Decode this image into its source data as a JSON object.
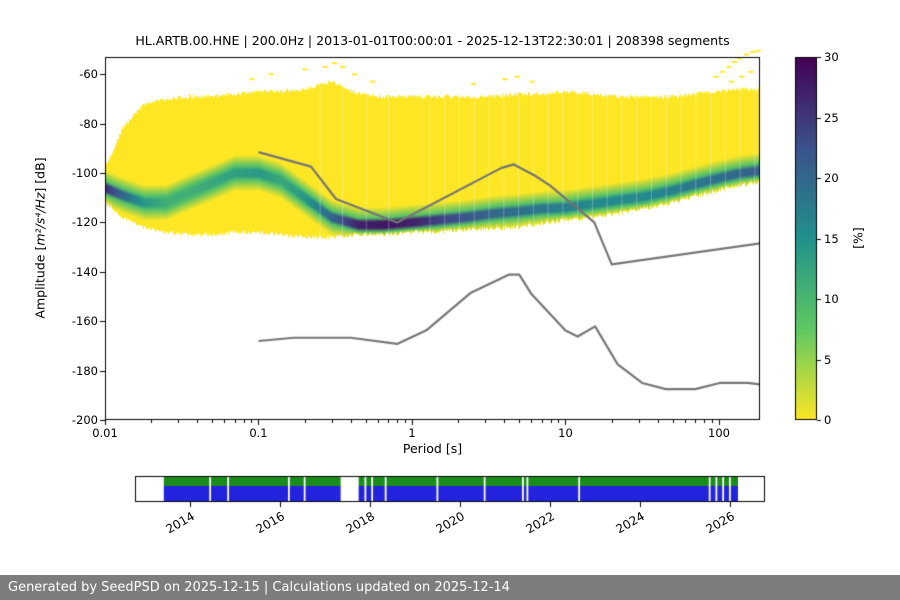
{
  "chart_data": {
    "type": "heatmap",
    "title": "HL.ARTB.00.HNE | 200.0Hz | 2013-01-01T00:00:01 - 2025-12-13T22:30:01 | 208398 segments",
    "xlabel": "Period [s]",
    "ylabel_prefix": "Amplitude [",
    "ylabel_math": "m²/s⁴/Hz",
    "ylabel_suffix": "] [dB]",
    "xscale": "log",
    "xlim": [
      0.01,
      185
    ],
    "ylim": [
      -200,
      -53
    ],
    "grid": false,
    "x_ticks": [
      0.01,
      0.1,
      1,
      10,
      100
    ],
    "x_tick_labels": [
      "0.01",
      "0.1",
      "1",
      "10",
      "100"
    ],
    "y_ticks": [
      -60,
      -80,
      -100,
      -120,
      -140,
      -160,
      -180,
      -200
    ],
    "y_tick_labels": [
      "-60",
      "-80",
      "-100",
      "-120",
      "-140",
      "-160",
      "-180",
      "-200"
    ],
    "colorbar": {
      "label": "[%]",
      "ticks": [
        0,
        5,
        10,
        15,
        20,
        25,
        30
      ],
      "tick_labels": [
        "0",
        "5",
        "10",
        "15",
        "20",
        "25",
        "30"
      ],
      "vmin": 0,
      "vmax": 30,
      "colormap": "viridis_r"
    },
    "psd_distribution": {
      "description": "PPSD probability density: per period column, max/min dB extent of colored region, dB of highest-probability mode, and mode probability in percent",
      "periods_s": [
        0.01,
        0.013,
        0.018,
        0.025,
        0.035,
        0.05,
        0.07,
        0.1,
        0.14,
        0.2,
        0.3,
        0.45,
        0.65,
        1,
        1.5,
        2.2,
        3.3,
        5,
        7,
        10,
        15,
        22,
        33,
        50,
        70,
        100,
        140,
        185
      ],
      "max_db": [
        -98,
        -82,
        -72,
        -70,
        -69,
        -69,
        -68,
        -67,
        -67,
        -66,
        -63,
        -68,
        -69,
        -69,
        -69,
        -69,
        -69,
        -68,
        -68,
        -67,
        -68,
        -69,
        -69,
        -69,
        -68,
        -67,
        -66,
        -66
      ],
      "min_db": [
        -112,
        -118,
        -122,
        -124,
        -125,
        -125,
        -124,
        -124,
        -125,
        -126,
        -126,
        -125,
        -125,
        -124,
        -124,
        -123,
        -122.5,
        -122,
        -120.5,
        -119,
        -118,
        -116.5,
        -114.5,
        -112,
        -109.5,
        -107,
        -105,
        -104
      ],
      "mode_db": [
        -106,
        -109,
        -112,
        -112,
        -108,
        -104,
        -100,
        -100,
        -103,
        -110,
        -118,
        -121,
        -121,
        -120,
        -119,
        -118,
        -116.5,
        -115.5,
        -114.5,
        -114,
        -112.5,
        -111,
        -109.5,
        -107,
        -104.5,
        -102,
        -100,
        -99
      ],
      "mode_percent": [
        26,
        20,
        14,
        11,
        11,
        12,
        13,
        14,
        12,
        14,
        20,
        27,
        28,
        27,
        24,
        22,
        20,
        19,
        18,
        17,
        16,
        16,
        16,
        17,
        18,
        19,
        20,
        21
      ]
    },
    "outlier_speckles": [
      [
        0.09,
        -62
      ],
      [
        0.12,
        -60
      ],
      [
        0.2,
        -58
      ],
      [
        0.27,
        -57
      ],
      [
        0.31,
        -55.5
      ],
      [
        0.35,
        -57
      ],
      [
        0.42,
        -60
      ],
      [
        0.55,
        -63
      ],
      [
        2.5,
        -64
      ],
      [
        4,
        -62
      ],
      [
        4.8,
        -61
      ],
      [
        6,
        -63
      ],
      [
        95,
        -61
      ],
      [
        105,
        -59
      ],
      [
        115,
        -57
      ],
      [
        125,
        -55
      ],
      [
        135,
        -53.5
      ],
      [
        150,
        -52
      ],
      [
        165,
        -51
      ],
      [
        178,
        -50.5
      ],
      [
        120,
        -63
      ],
      [
        140,
        -61
      ],
      [
        160,
        -59
      ]
    ],
    "noise_models": {
      "name": "Peterson NHNM / NLNM reference curves",
      "color": "#757575",
      "nhnm": [
        [
          0.1,
          -91.5
        ],
        [
          0.22,
          -97.4
        ],
        [
          0.32,
          -110.5
        ],
        [
          0.8,
          -120
        ],
        [
          3.8,
          -98
        ],
        [
          4.6,
          -96.5
        ],
        [
          6.3,
          -101
        ],
        [
          7.9,
          -105
        ],
        [
          15.4,
          -120
        ],
        [
          20,
          -137
        ],
        [
          185,
          -128.5
        ]
      ],
      "nlnm": [
        [
          0.1,
          -168
        ],
        [
          0.17,
          -166.7
        ],
        [
          0.4,
          -166.7
        ],
        [
          0.8,
          -169.2
        ],
        [
          1.24,
          -163.7
        ],
        [
          2.4,
          -148.6
        ],
        [
          4.3,
          -141.1
        ],
        [
          5,
          -141.1
        ],
        [
          6,
          -149
        ],
        [
          10,
          -163.8
        ],
        [
          12,
          -166.2
        ],
        [
          15.6,
          -162.1
        ],
        [
          21.9,
          -177.5
        ],
        [
          31.6,
          -185
        ],
        [
          45,
          -187.5
        ],
        [
          70,
          -187.5
        ],
        [
          101,
          -185
        ],
        [
          154,
          -185
        ],
        [
          185,
          -185.6
        ]
      ]
    }
  },
  "timeline": {
    "axis_start_year": 2012.78,
    "axis_end_year": 2026.78,
    "tick_years": [
      2014,
      2016,
      2018,
      2020,
      2022,
      2024,
      2026
    ],
    "tick_labels": [
      "2014",
      "2016",
      "2018",
      "2020",
      "2022",
      "2024",
      "2026"
    ],
    "green_color": "#1a8c1a",
    "blue_color": "#2323dd",
    "coverage_segments": [
      [
        2013.42,
        2014.43
      ],
      [
        2014.47,
        2014.83
      ],
      [
        2014.87,
        2016.18
      ],
      [
        2016.22,
        2016.53
      ],
      [
        2016.57,
        2017.35
      ],
      [
        2017.75,
        2017.88
      ],
      [
        2017.92,
        2018.03
      ],
      [
        2018.07,
        2018.33
      ],
      [
        2018.37,
        2019.48
      ],
      [
        2019.52,
        2020.53
      ],
      [
        2020.57,
        2021.38
      ],
      [
        2021.42,
        2021.48
      ],
      [
        2021.52,
        2022.63
      ],
      [
        2022.67,
        2025.53
      ],
      [
        2025.57,
        2025.68
      ],
      [
        2025.72,
        2025.83
      ],
      [
        2025.87,
        2025.98
      ],
      [
        2026.02,
        2026.18
      ]
    ]
  },
  "footer": {
    "text": "Generated by SeedPSD on 2025-12-15 | Calculations updated on 2025-12-14",
    "bg_color": "#7d7d7d"
  }
}
